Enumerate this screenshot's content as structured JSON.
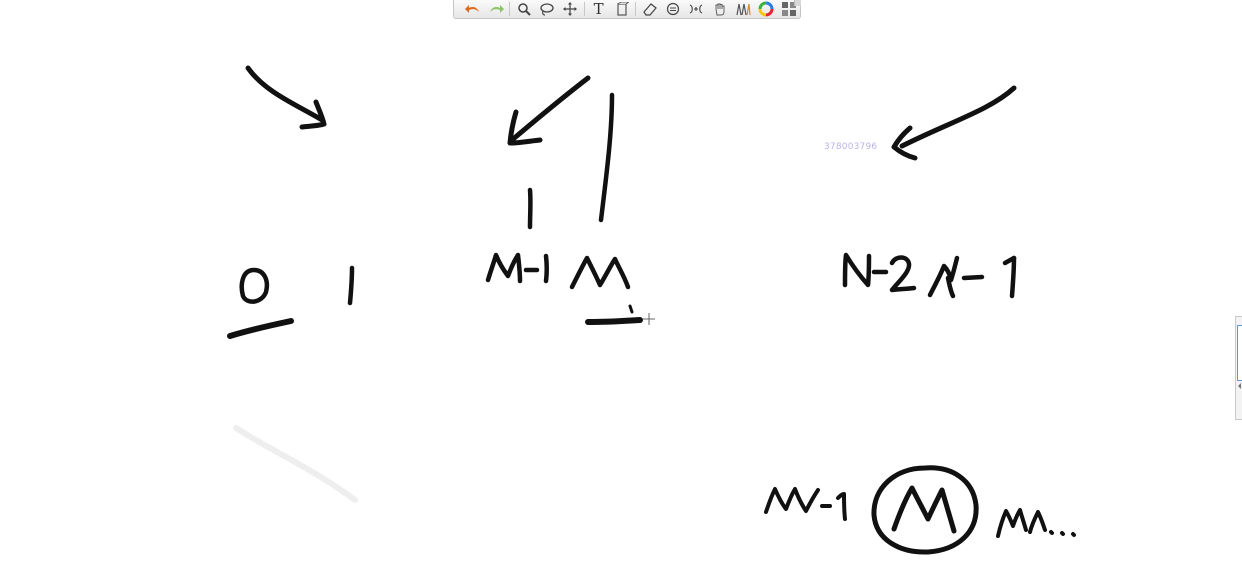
{
  "toolbar": {
    "tools": [
      {
        "name": "undo-icon",
        "color": "#e06a1b"
      },
      {
        "name": "redo-icon",
        "color": "#8cc46a"
      },
      {
        "name": "zoom-icon"
      },
      {
        "name": "lasso-icon"
      },
      {
        "name": "pan-icon"
      },
      {
        "name": "text-tool-icon",
        "glyph": "T"
      },
      {
        "name": "insert-space-icon"
      },
      {
        "name": "eraser-icon"
      },
      {
        "name": "ink-to-shape-icon"
      },
      {
        "name": "ink-to-math-icon"
      },
      {
        "name": "hand-icon"
      },
      {
        "name": "pen-icon"
      },
      {
        "name": "color-wheel-icon"
      },
      {
        "name": "shapes-gallery-icon"
      }
    ]
  },
  "canvas": {
    "watermark_text": "378003796",
    "ink_color": "#111111"
  }
}
